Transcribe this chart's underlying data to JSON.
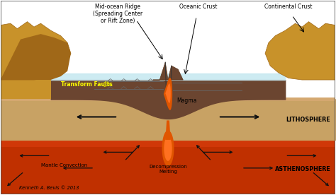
{
  "bg_color": "#ffffff",
  "ocean_color": "#c5e8f0",
  "oceanic_crust_color": "#6b4530",
  "oceanic_crust_dark": "#5a3820",
  "continental_crust_color": "#c8922a",
  "continental_crust_dark": "#a06818",
  "lithosphere_color": "#c8a264",
  "lithosphere_dark": "#b08848",
  "asthenosphere_color": "#c03000",
  "asthenosphere_mid": "#d04010",
  "magma_color": "#e05500",
  "magma_bright": "#ff7020",
  "ridge_line_color": "#444444",
  "fault_line_color": "#666666",
  "arrow_color": "#111111",
  "border_color": "#333333",
  "labels": {
    "mid_ocean_ridge": "Mid-ocean Ridge\n(Spreading Center\nor Rift Zone)",
    "oceanic_crust": "Oceanic Crust",
    "continental_crust": "Continental Crust",
    "transform_faults": "Transform Faults",
    "magma": "Magma",
    "lithosphere": "LITHOSPHERE",
    "asthenosphere": "ASTHENOSPHERE",
    "mantle_convection": "Mantle Convection",
    "decompression_melting": "Decompression\nMelting",
    "copyright": "Kenneth A. Bevis © 2013"
  }
}
